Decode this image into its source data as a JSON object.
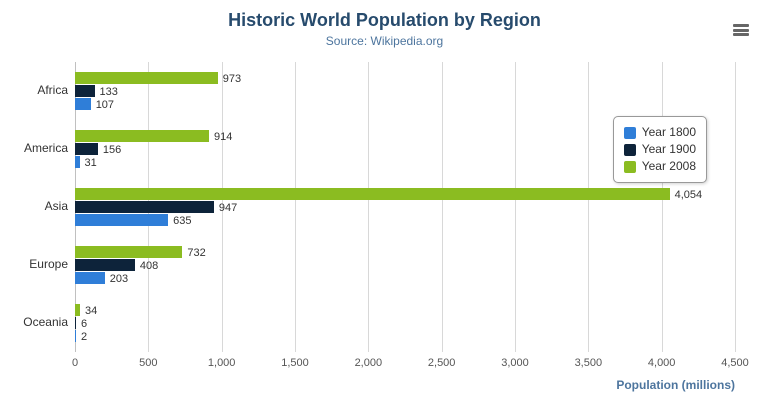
{
  "chart_data": {
    "type": "bar",
    "title": "Historic World Population by Region",
    "subtitle": "Source: Wikipedia.org",
    "categories": [
      "Africa",
      "America",
      "Asia",
      "Europe",
      "Oceania"
    ],
    "series": [
      {
        "name": "Year 1800",
        "color": "#2f7ed8",
        "values": [
          107,
          31,
          635,
          203,
          2
        ]
      },
      {
        "name": "Year 1900",
        "color": "#0d233a",
        "values": [
          133,
          156,
          947,
          408,
          6
        ]
      },
      {
        "name": "Year 2008",
        "color": "#8bbc21",
        "values": [
          973,
          914,
          4054,
          732,
          34
        ]
      }
    ],
    "bar_render_order_top_to_bottom": [
      "Year 2008",
      "Year 1900",
      "Year 1800"
    ],
    "xlabel": "Population (millions)",
    "ylabel": "",
    "xlim": [
      0,
      4500
    ],
    "xticks": [
      0,
      500,
      1000,
      1500,
      2000,
      2500,
      3000,
      3500,
      4000,
      4500
    ],
    "grid": true,
    "legend_position": "right",
    "colors": {
      "title": "#274b6d",
      "subtitle": "#4d759e",
      "axis_title": "#4d759e",
      "grid_line": "#d8d8d8",
      "axis_line": "#c0c0c0"
    }
  },
  "toolbar": {
    "export_menu_icon": "hamburger-menu-icon"
  }
}
